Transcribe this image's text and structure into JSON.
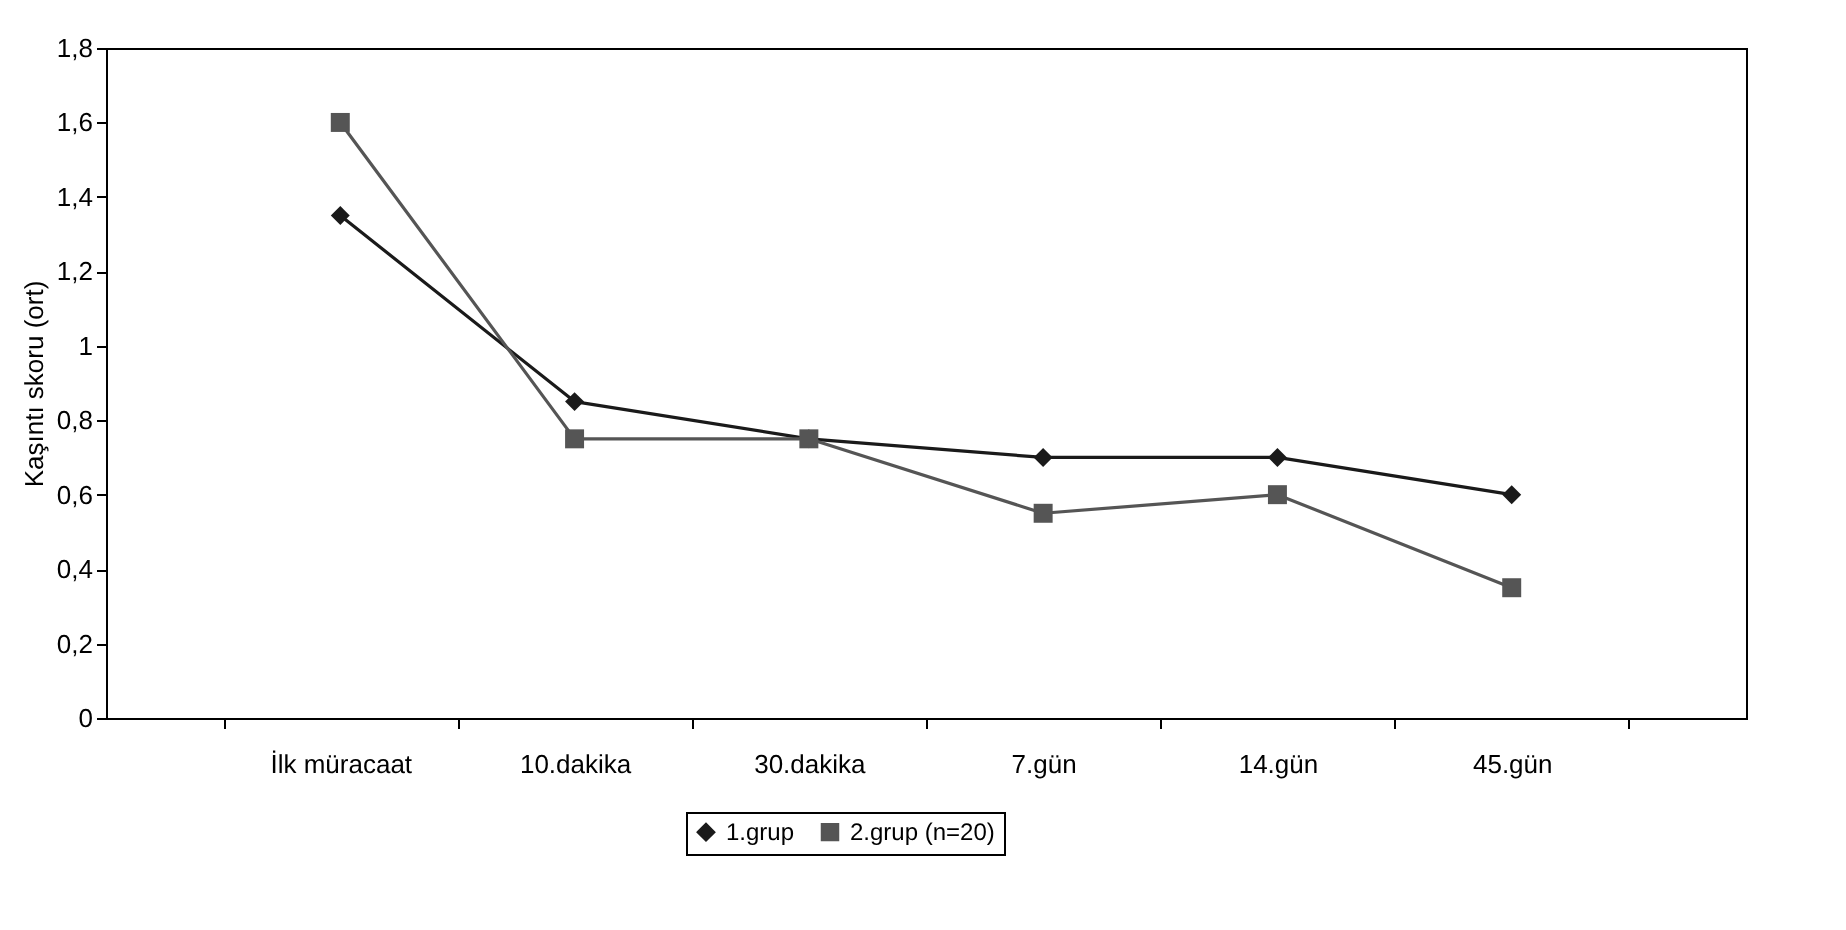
{
  "chart_data": {
    "type": "line",
    "ylabel": "Kaşıntı skoru (ort)",
    "categories": [
      "İlk müracaat",
      "10.dakika",
      "30.dakika",
      "7.gün",
      "14.gün",
      "45.gün"
    ],
    "ylim": [
      0,
      1.8
    ],
    "yticks": [
      0,
      {
        "value": 0.2,
        "label": "0,2"
      },
      {
        "value": 0.4,
        "label": "0,4"
      },
      {
        "value": 0.6,
        "label": "0,6"
      },
      {
        "value": 0.8,
        "label": "0,8"
      },
      1,
      {
        "value": 1.2,
        "label": "1,2"
      },
      {
        "value": 1.4,
        "label": "1,4"
      },
      {
        "value": 1.6,
        "label": "1,6"
      },
      {
        "value": 1.8,
        "label": "1,8"
      }
    ],
    "grid": false,
    "legend": "bottom",
    "line_style": "solid",
    "series": [
      {
        "name": "1.grup",
        "color": "#1a1a1a",
        "marker": "diamond",
        "values": [
          1.35,
          0.85,
          0.75,
          0.7,
          0.7,
          0.6
        ]
      },
      {
        "name": "2.grup (n=20)",
        "color": "#555555",
        "marker": "square",
        "values": [
          1.6,
          0.75,
          0.75,
          0.55,
          0.6,
          0.35
        ]
      }
    ]
  }
}
